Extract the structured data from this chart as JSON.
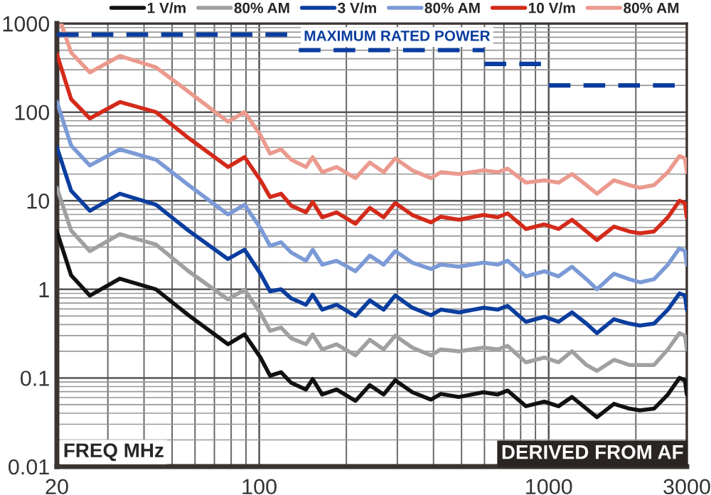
{
  "chart_data": {
    "type": "line",
    "xlabel": "FREQ MHz",
    "log": "xy",
    "grid": true,
    "legend": "top",
    "line_style": "solid",
    "xlim": [
      20,
      3000
    ],
    "xticks": [
      20,
      100,
      1000,
      3000
    ],
    "ylim": [
      0.01,
      1000
    ],
    "yticks": [
      0.01,
      0.1,
      1,
      10,
      100,
      1000
    ],
    "x": [
      20,
      22.4,
      26,
      33,
      44,
      57,
      78,
      89,
      101,
      109,
      119,
      129,
      145,
      153,
      165,
      185,
      215,
      241,
      269,
      295,
      338,
      392,
      424,
      490,
      595,
      666,
      721,
      834,
      966,
      1081,
      1203,
      1350,
      1468,
      1680,
      1900,
      2065,
      2311,
      2580,
      2830,
      2955,
      3000
    ],
    "series": [
      {
        "name": "1 V/m",
        "color": "#111111",
        "values": [
          4.5,
          1.44,
          0.85,
          1.32,
          1.0,
          0.51,
          0.24,
          0.31,
          0.17,
          0.106,
          0.116,
          0.088,
          0.074,
          0.097,
          0.065,
          0.074,
          0.055,
          0.083,
          0.065,
          0.094,
          0.069,
          0.057,
          0.066,
          0.061,
          0.069,
          0.065,
          0.072,
          0.048,
          0.054,
          0.048,
          0.061,
          0.045,
          0.036,
          0.051,
          0.045,
          0.043,
          0.045,
          0.065,
          0.1,
          0.094,
          0.065
        ]
      },
      {
        "name": "80% AM",
        "color": "#a0a0a0",
        "values": [
          14,
          4.6,
          2.7,
          4.2,
          3.2,
          1.6,
          0.77,
          0.99,
          0.54,
          0.34,
          0.37,
          0.28,
          0.24,
          0.31,
          0.21,
          0.24,
          0.18,
          0.27,
          0.21,
          0.3,
          0.22,
          0.18,
          0.21,
          0.2,
          0.22,
          0.21,
          0.23,
          0.15,
          0.17,
          0.15,
          0.2,
          0.14,
          0.12,
          0.16,
          0.14,
          0.14,
          0.14,
          0.21,
          0.32,
          0.3,
          0.21
        ]
      },
      {
        "name": "3 V/m",
        "color": "#0a3d9e",
        "values": [
          40,
          13,
          7.7,
          12,
          9,
          4.6,
          2.2,
          2.8,
          1.5,
          0.95,
          1.0,
          0.79,
          0.67,
          0.87,
          0.59,
          0.67,
          0.5,
          0.75,
          0.59,
          0.85,
          0.62,
          0.51,
          0.59,
          0.55,
          0.62,
          0.59,
          0.65,
          0.43,
          0.49,
          0.43,
          0.55,
          0.41,
          0.32,
          0.46,
          0.41,
          0.39,
          0.41,
          0.59,
          0.9,
          0.85,
          0.59
        ]
      },
      {
        "name": "80% AM",
        "color": "#7b9ad6",
        "values": [
          130,
          42,
          25,
          38,
          29,
          15,
          7,
          9,
          4.9,
          3.1,
          3.4,
          2.6,
          2.1,
          2.8,
          1.9,
          2.1,
          1.6,
          2.4,
          1.9,
          2.7,
          2.0,
          1.7,
          1.9,
          1.8,
          2.0,
          1.9,
          2.1,
          1.4,
          1.6,
          1.4,
          1.8,
          1.3,
          1.0,
          1.5,
          1.3,
          1.2,
          1.3,
          1.9,
          2.9,
          2.7,
          1.9
        ]
      },
      {
        "name": "10 V/m",
        "color": "#d42a1a",
        "values": [
          450,
          140,
          85,
          130,
          100,
          51,
          24,
          31,
          17,
          11,
          12,
          8.8,
          7.4,
          9.7,
          6.5,
          7.4,
          5.5,
          8.3,
          6.5,
          9.4,
          6.9,
          5.7,
          6.6,
          6.1,
          6.9,
          6.5,
          7.2,
          4.8,
          5.4,
          4.8,
          6.1,
          4.5,
          3.6,
          5.1,
          4.5,
          4.3,
          4.5,
          6.5,
          10,
          9.4,
          6.5
        ]
      },
      {
        "name": "80% AM",
        "color": "#eb9a8e",
        "x": [
          20.7,
          22.4,
          26,
          33,
          44,
          57,
          78,
          89,
          101,
          109,
          119,
          129,
          145,
          153,
          165,
          185,
          215,
          241,
          269,
          295,
          338,
          392,
          424,
          490,
          595,
          666,
          721,
          834,
          966,
          1081,
          1203,
          1350,
          1468,
          1680,
          1900,
          2065,
          2311,
          2580,
          2830,
          2955,
          3000
        ],
        "values": [
          1000,
          470,
          280,
          430,
          320,
          170,
          78,
          100,
          55,
          34,
          38,
          29,
          24,
          31,
          21,
          24,
          18,
          27,
          21,
          30,
          22,
          18,
          21,
          20,
          22,
          21,
          23,
          16,
          17,
          16,
          20,
          15,
          12,
          17,
          15,
          14,
          15,
          21,
          32,
          30,
          21
        ]
      },
      {
        "type": "step",
        "color": "#0a3d9e",
        "line_style": "dashed",
        "x": [
          20,
          137,
          600,
          1000,
          3000
        ],
        "values": [
          750,
          500,
          350,
          200,
          200
        ]
      }
    ],
    "annotations": [
      "MAXIMUM RATED POWER",
      "DERIVED FROM AF"
    ]
  }
}
